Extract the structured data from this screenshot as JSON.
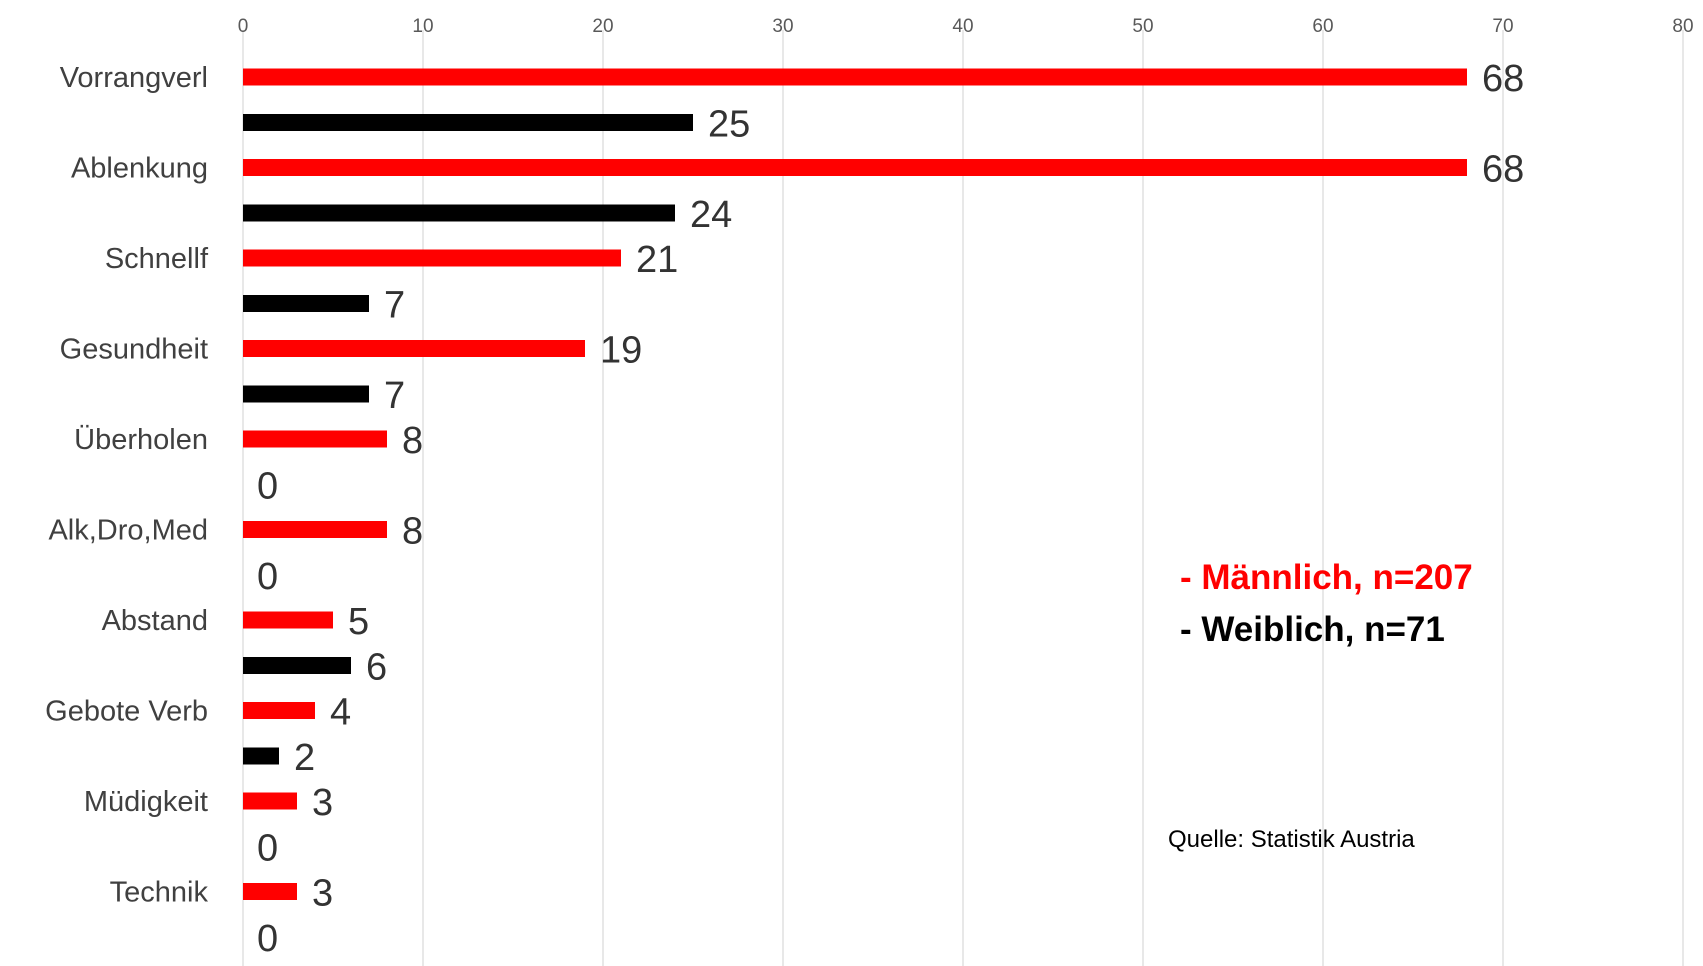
{
  "chart_data": {
    "type": "bar",
    "orientation": "horizontal",
    "categories": [
      "Vorrangverl",
      "Ablenkung",
      "Schnellf",
      "Gesundheit",
      "Überholen",
      "Alk,Dro,Med",
      "Abstand",
      "Gebote Verb",
      "Müdigkeit",
      "Technik"
    ],
    "series": [
      {
        "name": "- Männlich, n=207",
        "color": "#ff0000",
        "values": [
          68,
          68,
          21,
          19,
          8,
          8,
          5,
          4,
          3,
          3
        ]
      },
      {
        "name": "- Weiblich, n=71",
        "color": "#000000",
        "values": [
          25,
          24,
          7,
          7,
          0,
          0,
          6,
          2,
          0,
          0
        ]
      }
    ],
    "xlim": [
      0,
      80
    ],
    "xticks": [
      0,
      10,
      20,
      30,
      40,
      50,
      60,
      70,
      80
    ],
    "x_axis_position": "top",
    "grid": true,
    "gridline_color": "#d9d9d9",
    "legend_placement": "right-middle",
    "source": "Quelle: Statistik Austria"
  }
}
